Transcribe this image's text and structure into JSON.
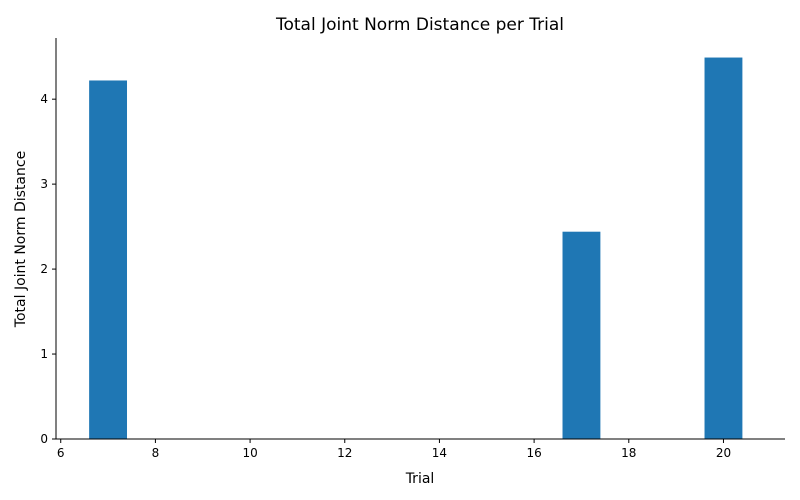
{
  "chart_data": {
    "type": "bar",
    "title": "Total Joint Norm Distance per Trial",
    "xlabel": "Trial",
    "ylabel": "Total Joint Norm Distance",
    "x": [
      7,
      17,
      20
    ],
    "values": [
      4.22,
      2.44,
      4.49
    ],
    "bar_width": 0.8,
    "xlim": [
      5.9,
      21.3
    ],
    "ylim": [
      0,
      4.72
    ],
    "xticks": [
      6,
      8,
      10,
      12,
      14,
      16,
      18,
      20
    ],
    "yticks": [
      0,
      1,
      2,
      3,
      4
    ],
    "bar_color": "#1f77b4",
    "grid": false,
    "spines": [
      "left",
      "bottom"
    ]
  }
}
